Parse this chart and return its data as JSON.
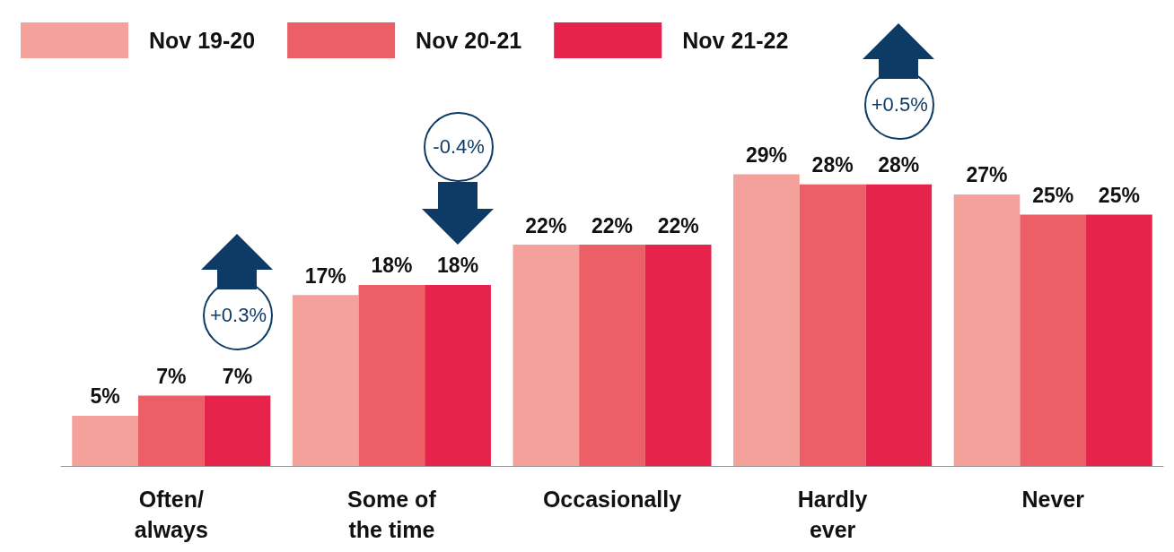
{
  "chart_data": {
    "type": "bar",
    "categories": [
      "Often/\nalways",
      "Some of\nthe time",
      "Occasionally",
      "Hardly\never",
      "Never"
    ],
    "series": [
      {
        "name": "Nov 19-20",
        "color": "#f4a09b",
        "values": [
          5,
          17,
          22,
          29,
          27
        ],
        "value_labels": [
          "5%",
          "17%",
          "22%",
          "29%",
          "27%"
        ]
      },
      {
        "name": "Nov 20-21",
        "color": "#ec5f67",
        "values": [
          7,
          18,
          22,
          28,
          25
        ],
        "value_labels": [
          "7%",
          "18%",
          "22%",
          "28%",
          "25%"
        ]
      },
      {
        "name": "Nov 21-22",
        "color": "#e5234b",
        "values": [
          7,
          18,
          22,
          28,
          25
        ],
        "value_labels": [
          "7%",
          "18%",
          "22%",
          "28%",
          "25%"
        ]
      }
    ],
    "legend": "top left",
    "grid": false,
    "annotations": [
      "+0.3%",
      "-0.4%",
      "+0.5%"
    ]
  }
}
